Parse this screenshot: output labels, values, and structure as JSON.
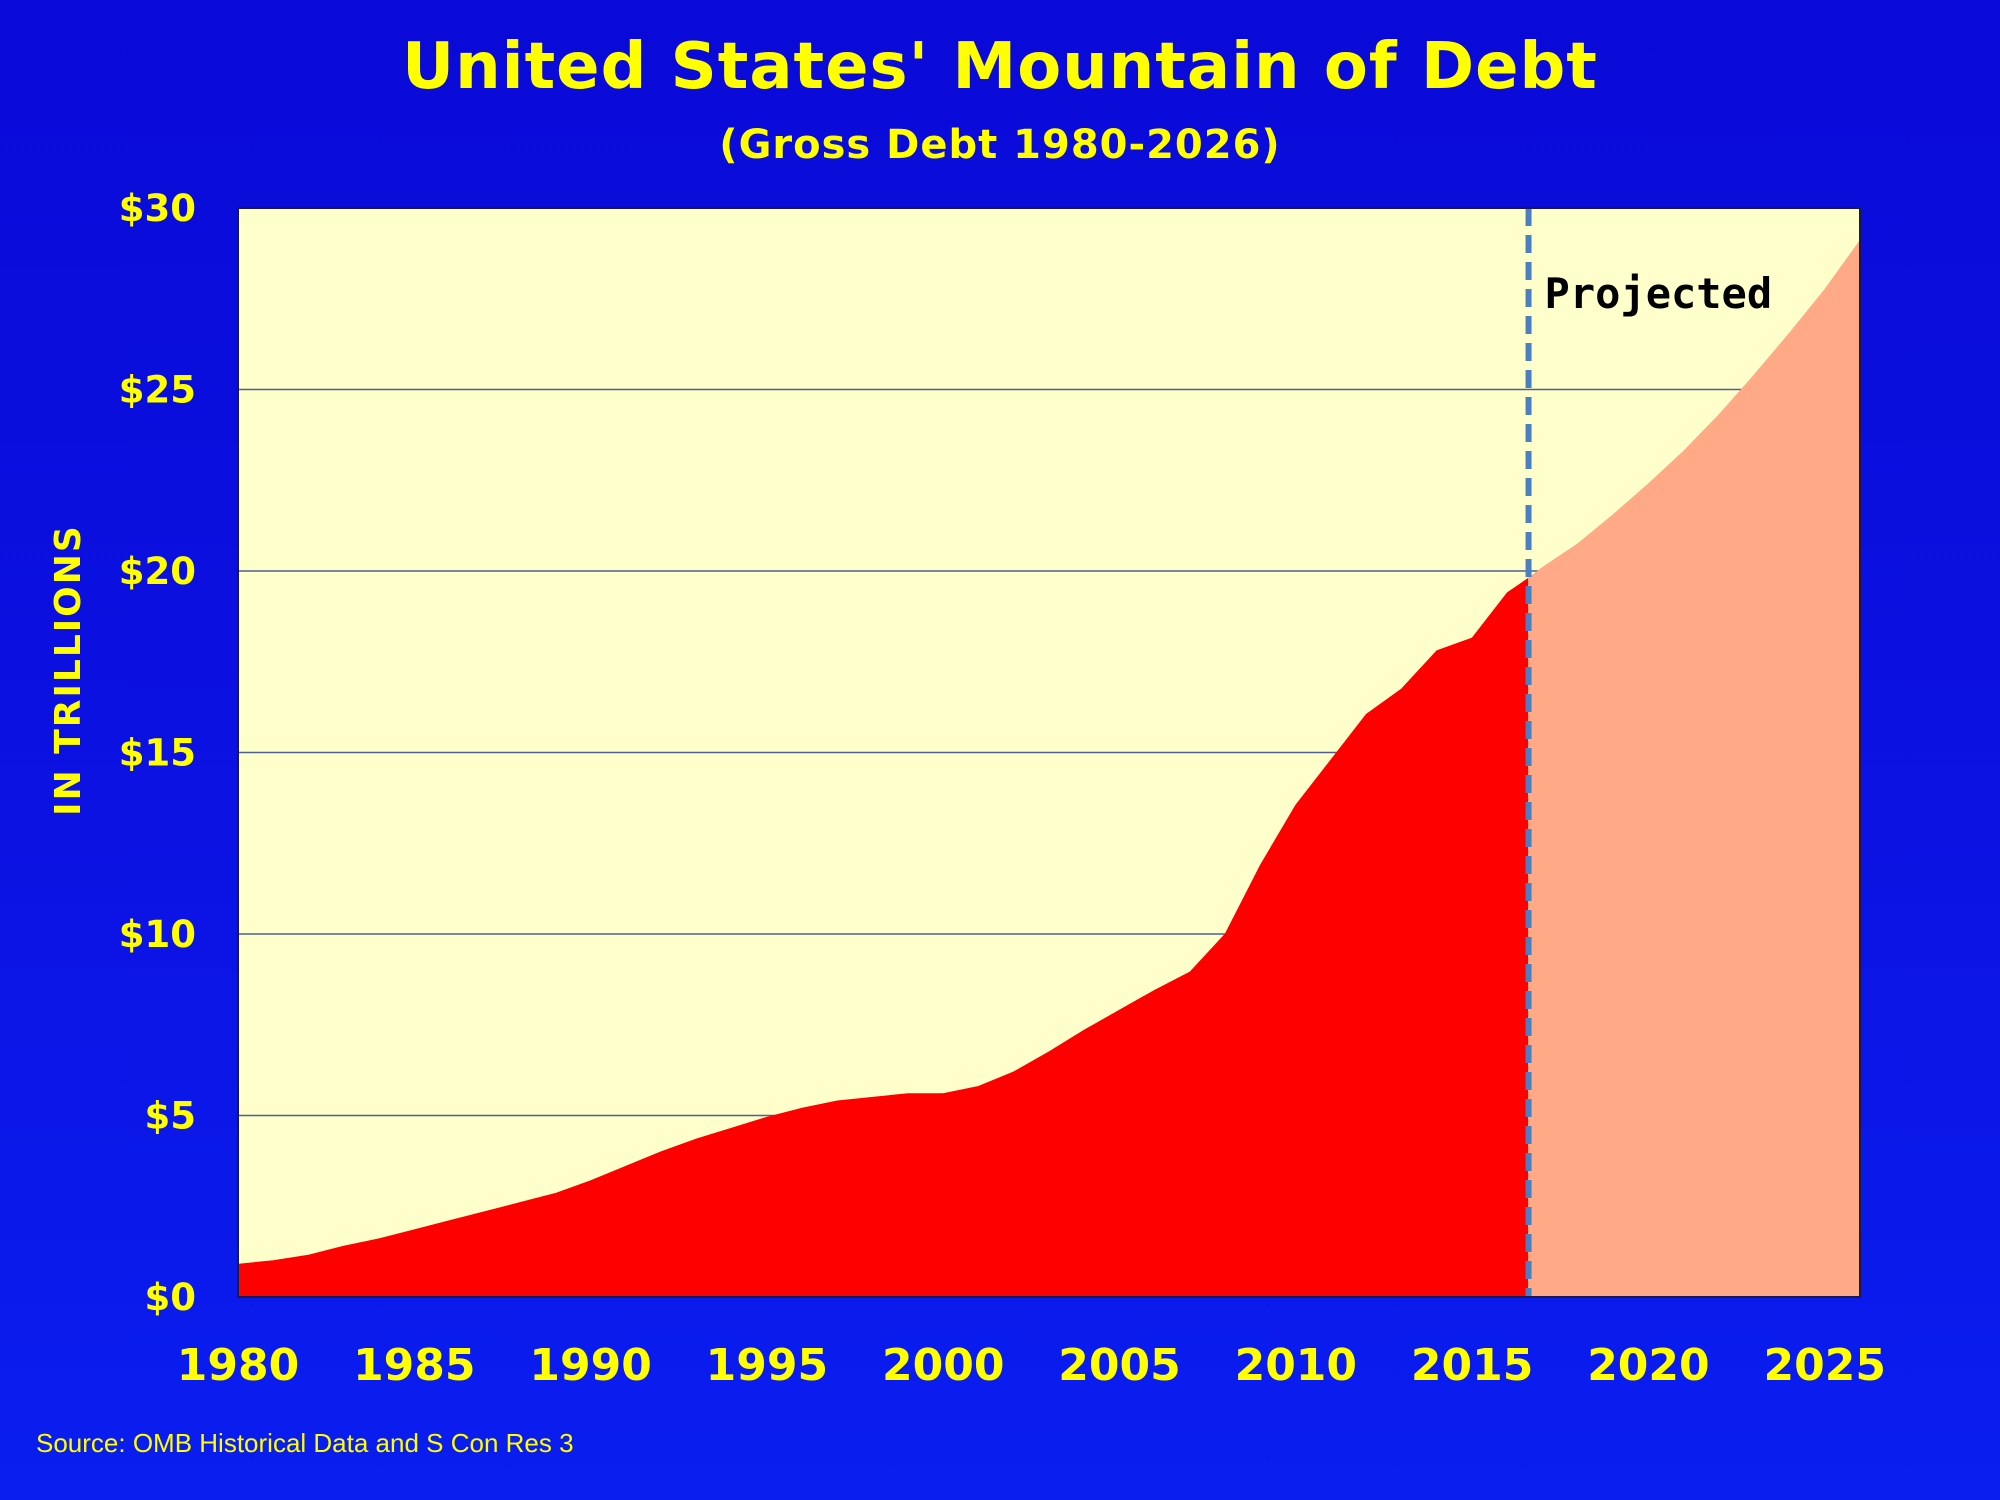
{
  "chart_data": {
    "type": "area",
    "title": "United States' Mountain of Debt",
    "subtitle": "(Gross Debt 1980-2026)",
    "ylabel": "IN TRILLIONS",
    "xlabel": "",
    "xlim": [
      1980,
      2026
    ],
    "ylim": [
      0,
      30
    ],
    "y_ticks": [
      0,
      5,
      10,
      15,
      20,
      25,
      30
    ],
    "y_tick_labels": [
      "$0",
      "$5",
      "$10",
      "$15",
      "$20",
      "$25",
      "$30"
    ],
    "x_ticks": [
      1980,
      1985,
      1990,
      1995,
      2000,
      2005,
      2010,
      2015,
      2020,
      2025
    ],
    "x_tick_labels": [
      "1980",
      "1985",
      "1990",
      "1995",
      "2000",
      "2005",
      "2010",
      "2015",
      "2020",
      "2025"
    ],
    "grid": true,
    "projection_start": 2016.6,
    "annotation": "Projected",
    "series": [
      {
        "x": [
          1980,
          1981,
          1982,
          1983,
          1984,
          1985,
          1986,
          1987,
          1988,
          1989,
          1990,
          1991,
          1992,
          1993,
          1994,
          1995,
          1996,
          1997,
          1998,
          1999,
          2000,
          2001,
          2002,
          2003,
          2004,
          2005,
          2006,
          2007,
          2008,
          2009,
          2010,
          2011,
          2012,
          2013,
          2014,
          2015,
          2016,
          2016.6
        ],
        "values": [
          0.9,
          1.0,
          1.15,
          1.4,
          1.6,
          1.85,
          2.1,
          2.35,
          2.6,
          2.85,
          3.2,
          3.6,
          4.0,
          4.35,
          4.65,
          4.95,
          5.2,
          5.4,
          5.5,
          5.6,
          5.6,
          5.8,
          6.2,
          6.75,
          7.35,
          7.9,
          8.45,
          8.95,
          10.0,
          11.9,
          13.55,
          14.8,
          16.05,
          16.75,
          17.8,
          18.15,
          19.4,
          19.8
        ],
        "color": "#ff0000"
      },
      {
        "x": [
          2016.6,
          2017,
          2018,
          2019,
          2020,
          2021,
          2022,
          2023,
          2024,
          2025,
          2026
        ],
        "values": [
          19.8,
          20.1,
          20.75,
          21.55,
          22.4,
          23.3,
          24.3,
          25.4,
          26.55,
          27.75,
          29.1
        ],
        "color": "#ffa987"
      }
    ],
    "colors": {
      "plot_bg": "#ffffcc",
      "actual": "#ff0000",
      "projected": "#ffa987",
      "divider": "#4a7fc1",
      "text": "#ffff00",
      "gridline": "#4f5f8f"
    }
  },
  "source_note": "Source: OMB Historical Data and S Con Res 3"
}
